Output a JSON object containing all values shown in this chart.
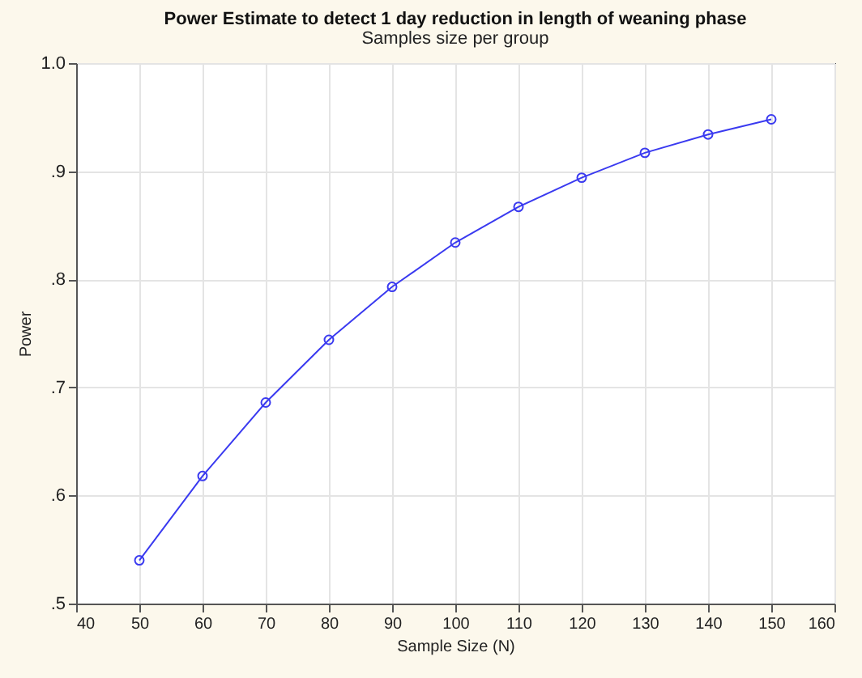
{
  "chart_data": {
    "type": "line",
    "title": "Power Estimate to detect 1 day reduction in length of weaning phase",
    "subtitle": "Samples size per group",
    "xlabel": "Sample Size (N)",
    "ylabel": "Power",
    "x": [
      50,
      60,
      70,
      80,
      90,
      100,
      110,
      120,
      130,
      140,
      150
    ],
    "series": [
      {
        "color": "#3a3af0",
        "values": [
          0.54,
          0.618,
          0.686,
          0.744,
          0.793,
          0.834,
          0.867,
          0.894,
          0.917,
          0.934,
          0.948
        ]
      }
    ],
    "xlim": [
      40,
      160
    ],
    "xticks": [
      40,
      50,
      60,
      70,
      80,
      90,
      100,
      110,
      120,
      130,
      140,
      150,
      160
    ],
    "ylim": [
      0.5,
      1.0
    ],
    "yticks": [
      {
        "value": 0.5,
        "label": ".5"
      },
      {
        "value": 0.6,
        "label": ".6"
      },
      {
        "value": 0.7,
        "label": ".7"
      },
      {
        "value": 0.8,
        "label": ".8"
      },
      {
        "value": 0.9,
        "label": ".9"
      },
      {
        "value": 1.0,
        "label": "1.0"
      }
    ],
    "grid": true,
    "marker": "circle",
    "line_style": "solid",
    "legend": false
  }
}
